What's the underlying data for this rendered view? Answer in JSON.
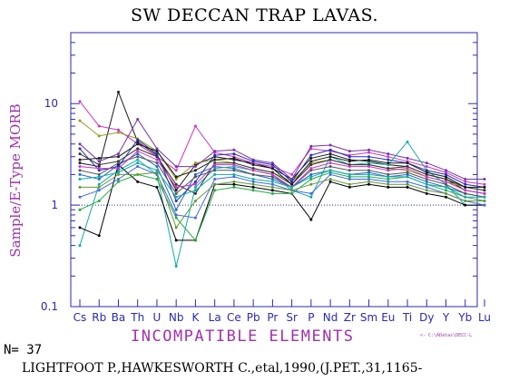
{
  "chart_data": {
    "type": "line",
    "title": "SW DECCAN TRAP LAVAS.",
    "ylabel": "Sample/E-Type MORB",
    "xlabel": "INCOMPATIBLE ELEMENTS",
    "yscale": "log",
    "ylim": [
      0.1,
      50
    ],
    "y_ticks": [
      "0.1",
      "1",
      "10"
    ],
    "reference_line": 1,
    "categories": [
      "Cs",
      "Rb",
      "Ba",
      "Th",
      "U",
      "Nb",
      "K",
      "La",
      "Ce",
      "Pb",
      "Pr",
      "Sr",
      "P",
      "Nd",
      "Zr",
      "Sm",
      "Eu",
      "Ti",
      "Dy",
      "Y",
      "Yb",
      "Lu"
    ],
    "series": [
      {
        "color": "#1a1a1a",
        "values": [
          2.6,
          2.4,
          13,
          4.2,
          3.1,
          1.4,
          2.5,
          3.0,
          2.8,
          2.6,
          2.3,
          1.8,
          2.9,
          3.2,
          2.8,
          2.7,
          2.5,
          2.4,
          2.0,
          1.8,
          1.4,
          1.3
        ]
      },
      {
        "color": "#cc33cc",
        "values": [
          10.5,
          6.0,
          5.5,
          4.0,
          3.0,
          2.2,
          6.0,
          3.3,
          3.0,
          2.6,
          2.4,
          2.0,
          3.6,
          3.4,
          3.1,
          3.3,
          3.0,
          2.7,
          2.4,
          2.1,
          1.7,
          1.6
        ]
      },
      {
        "color": "#999922",
        "values": [
          6.8,
          4.8,
          5.2,
          4.5,
          3.4,
          1.8,
          2.6,
          2.8,
          2.6,
          2.3,
          2.1,
          1.7,
          2.6,
          2.8,
          2.5,
          2.5,
          2.3,
          2.2,
          1.9,
          1.7,
          1.5,
          1.4
        ]
      },
      {
        "color": "#7733aa",
        "values": [
          4.0,
          2.7,
          3.2,
          7.0,
          3.6,
          2.4,
          2.4,
          3.4,
          3.5,
          2.8,
          2.6,
          1.8,
          3.8,
          3.9,
          3.4,
          3.5,
          3.2,
          2.9,
          2.6,
          2.2,
          1.8,
          1.8
        ]
      },
      {
        "color": "#2266cc",
        "values": [
          2.0,
          1.8,
          2.5,
          3.2,
          2.4,
          0.9,
          2.0,
          2.4,
          2.3,
          2.0,
          1.8,
          1.5,
          2.0,
          2.2,
          2.0,
          2.1,
          1.9,
          2.0,
          1.7,
          1.5,
          1.3,
          1.2
        ]
      },
      {
        "color": "#11aaaa",
        "values": [
          0.4,
          1.6,
          2.2,
          2.8,
          2.0,
          0.25,
          1.5,
          2.3,
          2.4,
          2.2,
          2.0,
          1.4,
          1.2,
          3.0,
          2.5,
          2.6,
          2.5,
          4.2,
          2.2,
          1.6,
          1.0,
          1.0
        ]
      },
      {
        "color": "#000000",
        "values": [
          0.6,
          0.5,
          2.5,
          1.7,
          1.5,
          0.45,
          0.45,
          1.6,
          1.6,
          1.5,
          1.4,
          1.3,
          0.72,
          1.7,
          1.5,
          1.6,
          1.5,
          1.5,
          1.3,
          1.2,
          1.0,
          1.0
        ]
      },
      {
        "color": "#22aa44",
        "values": [
          0.9,
          1.1,
          1.7,
          2.0,
          1.8,
          0.75,
          0.45,
          1.4,
          1.5,
          1.4,
          1.3,
          1.3,
          1.8,
          2.1,
          1.9,
          1.9,
          1.8,
          1.9,
          1.6,
          1.4,
          1.2,
          1.1
        ]
      },
      {
        "color": "#333333",
        "values": [
          3.2,
          2.5,
          2.7,
          3.6,
          3.0,
          1.6,
          1.3,
          2.6,
          2.6,
          2.3,
          2.1,
          1.6,
          2.5,
          2.8,
          2.5,
          2.5,
          2.3,
          2.4,
          2.0,
          1.8,
          1.5,
          1.4
        ]
      },
      {
        "color": "#4466ee",
        "values": [
          1.2,
          1.4,
          1.8,
          2.4,
          2.0,
          0.8,
          0.75,
          1.8,
          1.9,
          1.7,
          1.6,
          1.4,
          1.3,
          2.0,
          1.8,
          1.8,
          1.7,
          1.7,
          1.5,
          1.3,
          1.1,
          1.0
        ]
      },
      {
        "color": "#555555",
        "values": [
          2.2,
          2.0,
          2.6,
          3.0,
          2.6,
          1.3,
          1.9,
          2.2,
          2.2,
          2.0,
          1.9,
          1.5,
          2.2,
          2.4,
          2.2,
          2.2,
          2.0,
          2.1,
          1.8,
          1.6,
          1.3,
          1.2
        ]
      },
      {
        "color": "#2233bb",
        "values": [
          3.6,
          2.2,
          2.4,
          4.4,
          3.2,
          1.1,
          1.7,
          3.1,
          3.2,
          2.7,
          2.5,
          1.7,
          3.1,
          3.5,
          3.0,
          3.0,
          2.8,
          2.6,
          2.2,
          2.0,
          1.6,
          1.5
        ]
      },
      {
        "color": "#669933",
        "values": [
          1.5,
          1.5,
          2.0,
          2.0,
          2.1,
          0.6,
          1.1,
          1.6,
          1.7,
          1.6,
          1.5,
          1.4,
          1.6,
          1.8,
          1.6,
          1.7,
          1.6,
          1.6,
          1.4,
          1.3,
          1.1,
          1.1
        ]
      },
      {
        "color": "#1a1a1a",
        "values": [
          2.8,
          2.9,
          3.0,
          4.0,
          3.4,
          1.9,
          2.2,
          2.8,
          2.9,
          2.5,
          2.3,
          1.6,
          2.7,
          3.0,
          2.7,
          2.8,
          2.6,
          2.6,
          2.1,
          1.9,
          1.5,
          1.5
        ]
      },
      {
        "color": "#cc33cc",
        "values": [
          2.4,
          2.3,
          2.3,
          3.4,
          2.8,
          1.5,
          1.6,
          2.5,
          2.5,
          2.2,
          2.0,
          1.5,
          2.3,
          2.6,
          2.4,
          2.4,
          2.2,
          2.3,
          1.9,
          1.7,
          1.4,
          1.3
        ]
      },
      {
        "color": "#11aaaa",
        "values": [
          1.8,
          1.9,
          2.1,
          2.6,
          2.2,
          1.2,
          1.4,
          2.0,
          2.0,
          1.8,
          1.7,
          1.5,
          1.9,
          2.2,
          2.0,
          2.0,
          1.9,
          1.9,
          1.6,
          1.5,
          1.2,
          1.2
        ]
      }
    ]
  },
  "footer": {
    "n_label": "N=",
    "n_value": "37",
    "file_tag": "<- C:\\ADatas\\DECC-L",
    "source": "LIGHTFOOT P.,HAWKESWORTH C.,etal,1990,(J.PET.,31,1165-"
  }
}
